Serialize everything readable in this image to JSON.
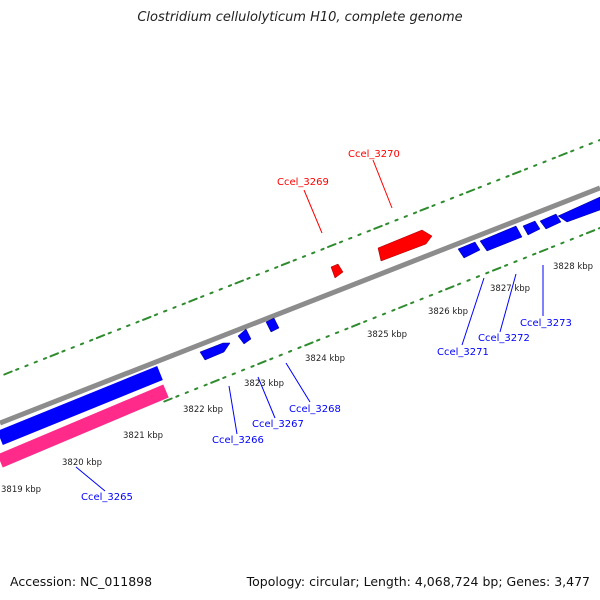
{
  "title": "Clostridium cellulolyticum H10, complete genome",
  "footer": {
    "accession": "Accession: NC_011898",
    "summary": "Topology: circular; Length: 4,068,724 bp; Genes: 3,477"
  },
  "colors": {
    "forward_gene": "#ff0000",
    "reverse_gene": "#0000ff",
    "backbone": "#8c8c8c",
    "tick": "#2e8b2e",
    "rna_band": "#ff2a8a",
    "cds_band": "#0000ff"
  },
  "scale_labels": [
    "3819 kbp",
    "3820 kbp",
    "3821 kbp",
    "3822 kbp",
    "3823 kbp",
    "3824 kbp",
    "3825 kbp",
    "3826 kbp",
    "3827 kbp",
    "3828 kbp"
  ],
  "genes": [
    {
      "label": "Ccel_3265",
      "strand": "reverse"
    },
    {
      "label": "Ccel_3266",
      "strand": "reverse"
    },
    {
      "label": "Ccel_3267",
      "strand": "reverse"
    },
    {
      "label": "Ccel_3268",
      "strand": "reverse"
    },
    {
      "label": "Ccel_3269",
      "strand": "forward"
    },
    {
      "label": "Ccel_3270",
      "strand": "forward"
    },
    {
      "label": "Ccel_3271",
      "strand": "reverse"
    },
    {
      "label": "Ccel_3272",
      "strand": "reverse"
    },
    {
      "label": "Ccel_3273",
      "strand": "reverse"
    }
  ]
}
